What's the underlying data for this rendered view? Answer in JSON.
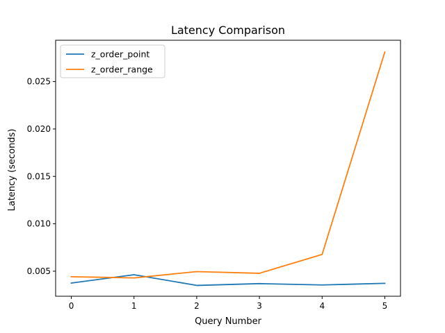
{
  "chart_data": {
    "type": "line",
    "title": "Latency Comparison",
    "xlabel": "Query Number",
    "ylabel": "Latency (seconds)",
    "x": [
      0,
      1,
      2,
      3,
      4,
      5
    ],
    "xlim": [
      -0.25,
      5.25
    ],
    "ylim": [
      0.00236,
      0.02936
    ],
    "x_ticks": [
      0,
      1,
      2,
      3,
      4,
      5
    ],
    "x_tick_labels": [
      "0",
      "1",
      "2",
      "3",
      "4",
      "5"
    ],
    "y_ticks": [
      0.005,
      0.01,
      0.015,
      0.02,
      0.025
    ],
    "y_tick_labels": [
      "0.005",
      "0.010",
      "0.015",
      "0.020",
      "0.025"
    ],
    "grid": false,
    "legend_position": "upper-left",
    "series": [
      {
        "name": "z_order_point",
        "color": "#1f77b4",
        "values": [
          0.00375,
          0.00463,
          0.0035,
          0.00369,
          0.00355,
          0.00372
        ]
      },
      {
        "name": "z_order_range",
        "color": "#ff7f0e",
        "values": [
          0.00442,
          0.00429,
          0.00496,
          0.00478,
          0.00677,
          0.02812
        ]
      }
    ]
  }
}
